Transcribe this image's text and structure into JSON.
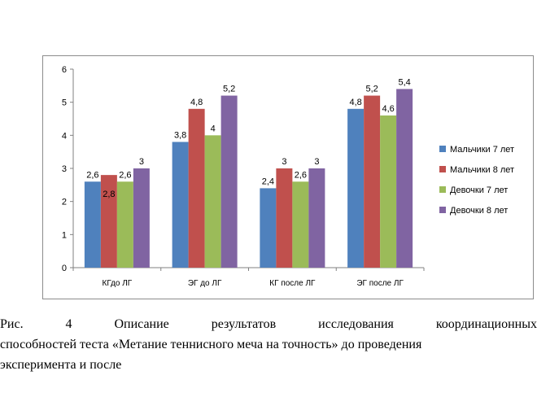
{
  "chart_data": {
    "type": "bar",
    "categories": [
      "КГдо ЛГ",
      "ЭГ до ЛГ",
      "КГ после ЛГ",
      "ЭГ после ЛГ"
    ],
    "series": [
      {
        "name": "Мальчики 7 лет",
        "values": [
          2.6,
          3.8,
          2.4,
          4.8
        ],
        "labels": [
          "2,6",
          "3,8",
          "2,4",
          "4,8"
        ],
        "color": "#4F81BD"
      },
      {
        "name": "Мальчики 8 лет",
        "values": [
          2.8,
          4.8,
          3.0,
          5.2
        ],
        "labels": [
          "2,8",
          "4,8",
          "3",
          "5,2"
        ],
        "color": "#C0504D"
      },
      {
        "name": "Девочки 7 лет",
        "values": [
          2.6,
          4.0,
          2.6,
          4.6
        ],
        "labels": [
          "2,6",
          "4",
          "2,6",
          "4,6"
        ],
        "color": "#9BBB59"
      },
      {
        "name": "Девочки 8 лет",
        "values": [
          3.0,
          5.2,
          3.0,
          5.4
        ],
        "labels": [
          "3",
          "5,2",
          "3",
          "5,4"
        ],
        "color": "#8064A2"
      }
    ],
    "yticks": [
      "0",
      "1",
      "2",
      "3",
      "4",
      "5",
      "6"
    ],
    "ylim": [
      0,
      6
    ],
    "title": "",
    "xlabel": "",
    "ylabel": "",
    "grid": false,
    "legend": "right"
  },
  "caption": {
    "line1_words": [
      "Рис.",
      "4",
      "Описание",
      "результатов",
      "исследования",
      "координационных"
    ],
    "line2": "способностей теста «Метание теннисного меча на точность» до проведения",
    "line3": "эксперимента и после"
  }
}
